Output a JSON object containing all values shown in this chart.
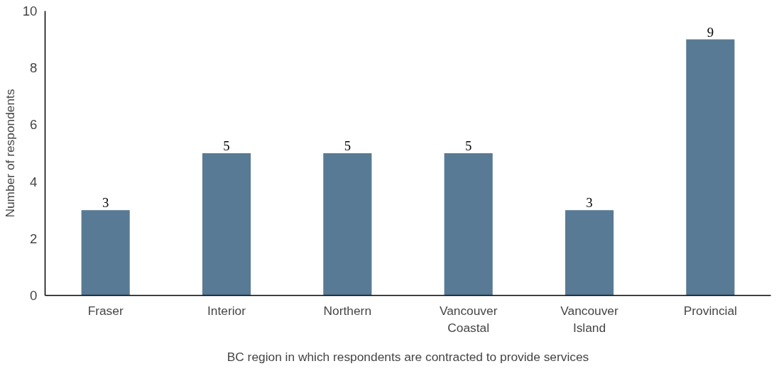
{
  "chart_data": {
    "type": "bar",
    "xlabel": "BC region in which respondents are contracted to provide services",
    "ylabel": "Number of respondents",
    "categories": [
      "Fraser",
      "Interior",
      "Northern",
      "Vancouver Coastal",
      "Vancouver Island",
      "Provincial"
    ],
    "values": [
      3,
      5,
      5,
      5,
      3,
      9
    ],
    "color": "#587a94",
    "ylim": [
      0,
      10
    ],
    "yticks": [
      0,
      2,
      4,
      6,
      8,
      10
    ],
    "grid": false,
    "data_labels": true
  }
}
